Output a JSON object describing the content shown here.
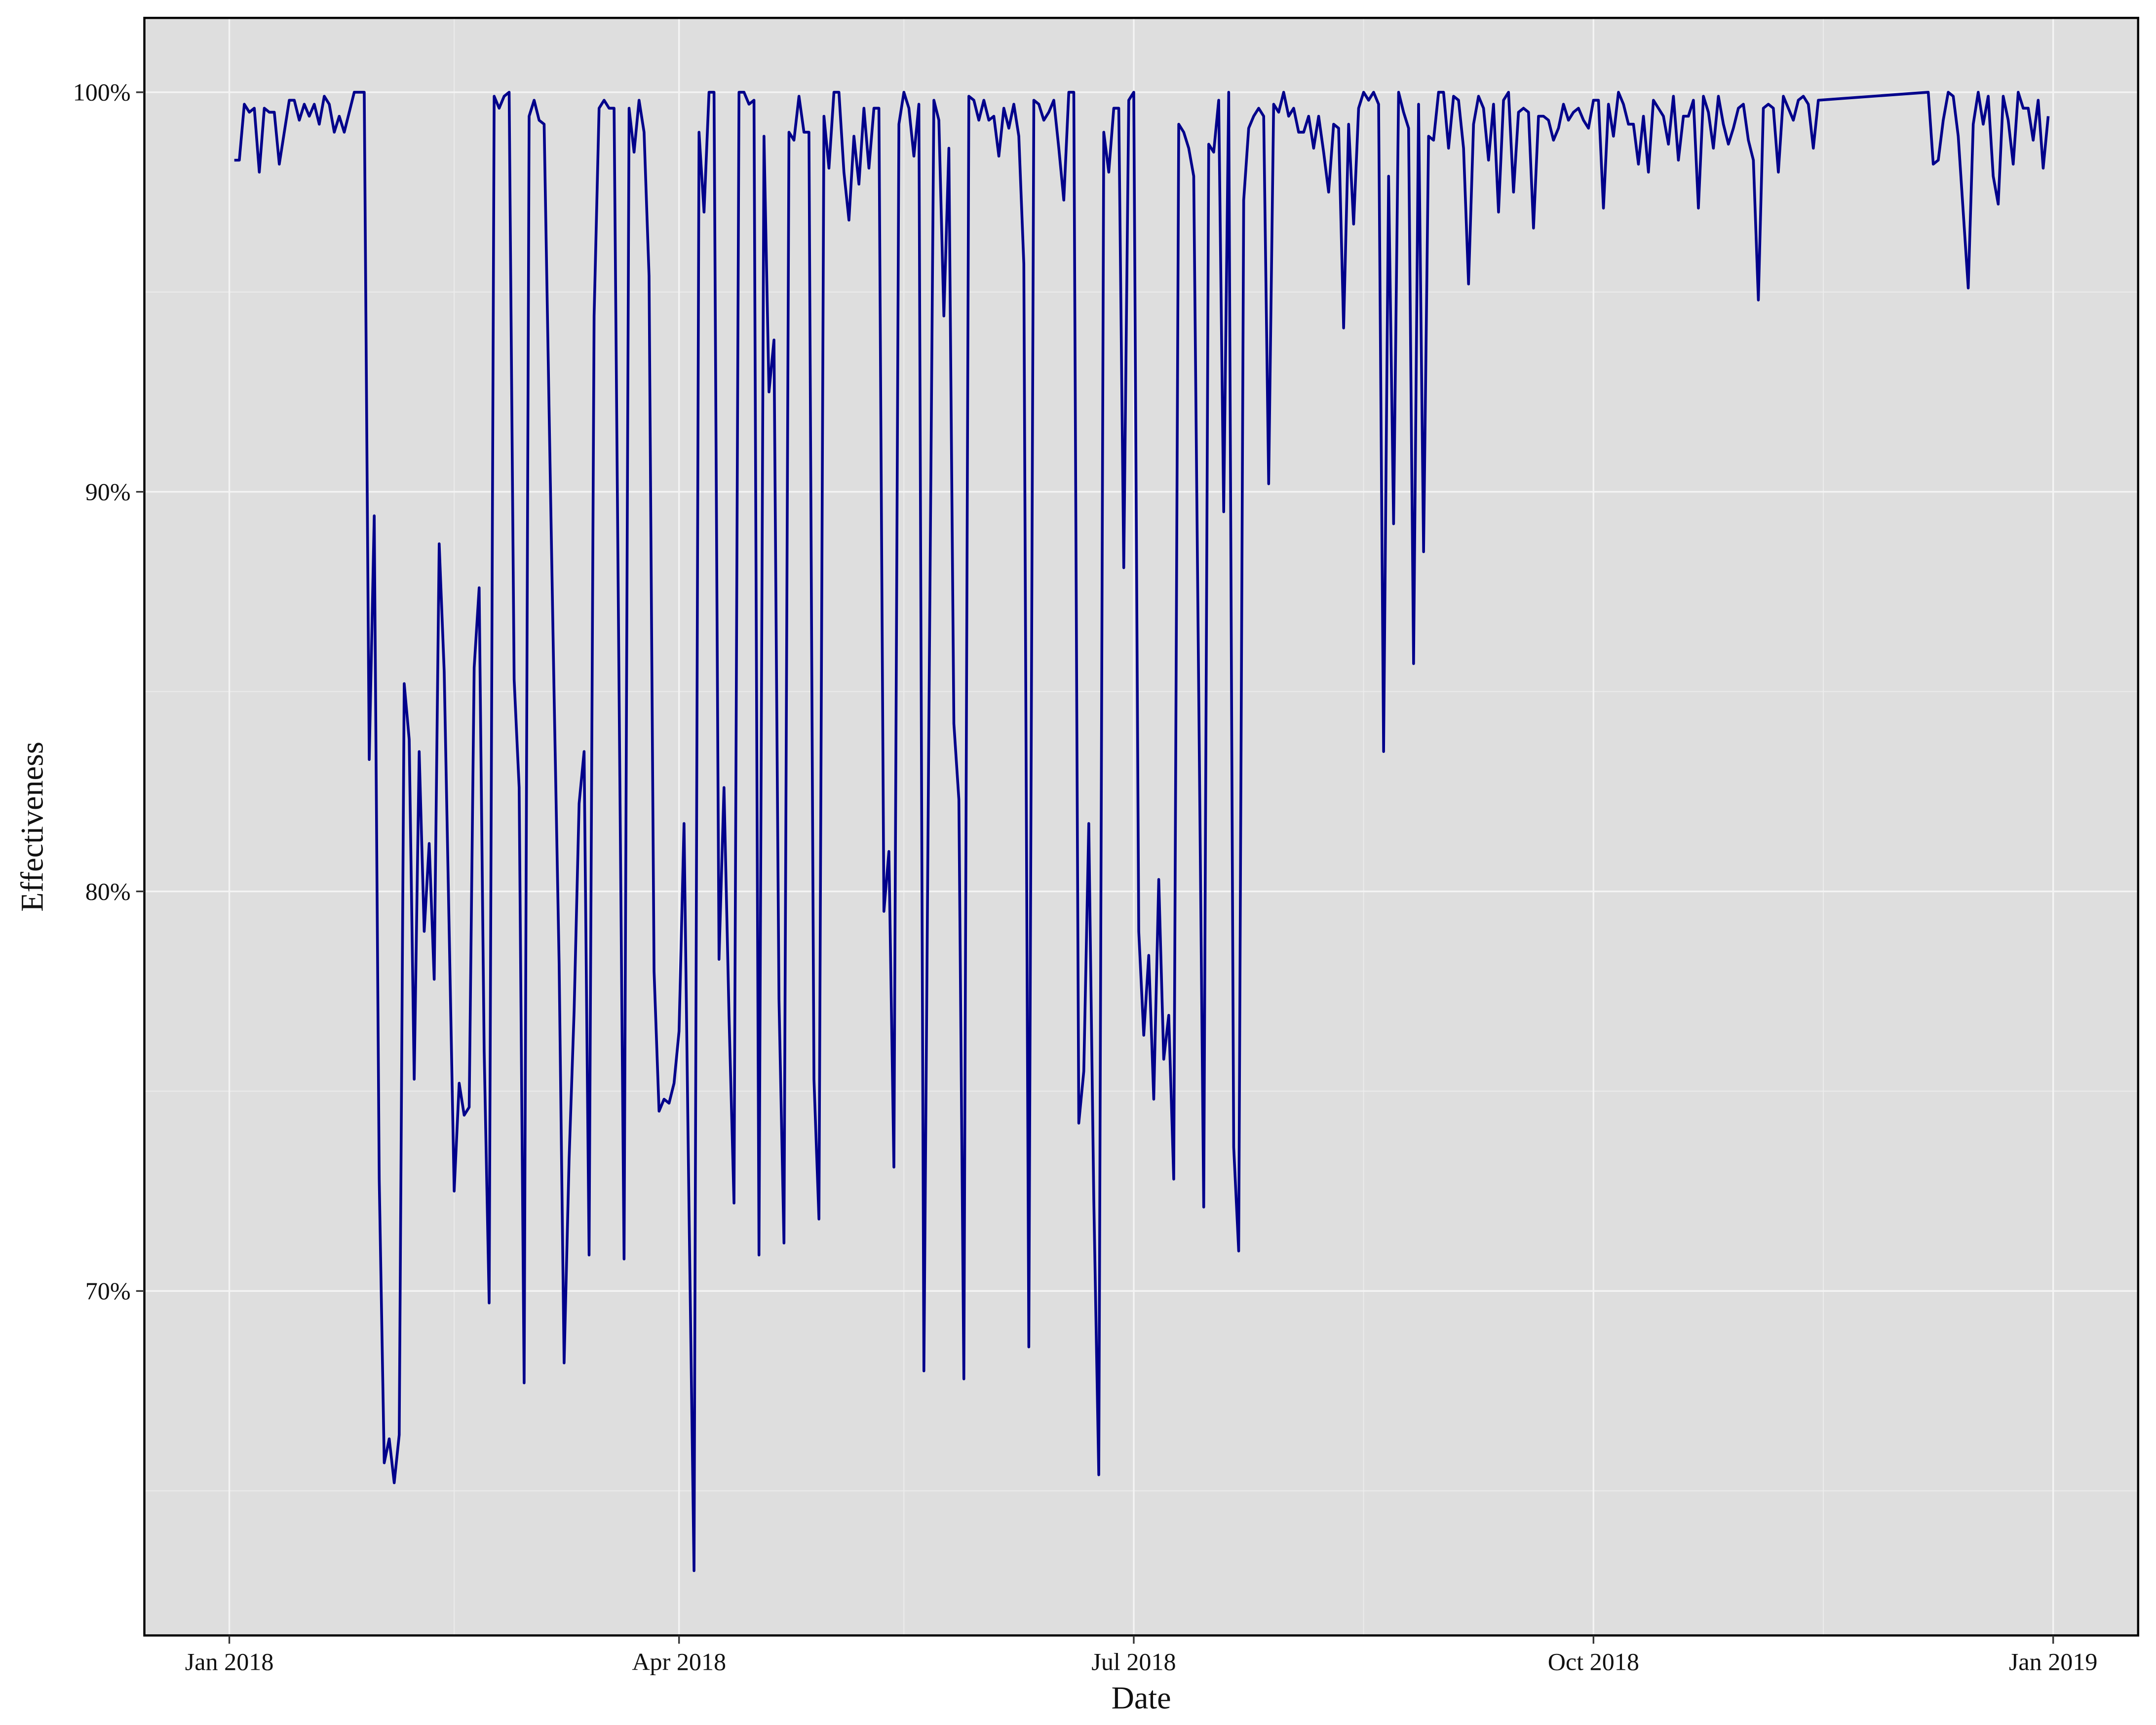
{
  "chart_data": {
    "type": "line",
    "xlabel": "Date",
    "ylabel": "Effectiveness",
    "color": "#00008b",
    "grid": true,
    "xlim": [
      "2017-12-15",
      "2019-01-18"
    ],
    "ylim": [
      61.38,
      101.86
    ],
    "xticks": [
      {
        "value": "2018-01-01",
        "label": "Jan 2018"
      },
      {
        "value": "2018-04-01",
        "label": "Apr 2018"
      },
      {
        "value": "2018-07-01",
        "label": "Jul 2018"
      },
      {
        "value": "2018-10-01",
        "label": "Oct 2018"
      },
      {
        "value": "2019-01-01",
        "label": "Jan 2019"
      }
    ],
    "x_minor_grid": [
      "2018-02-15",
      "2018-05-16",
      "2018-08-16",
      "2018-11-16"
    ],
    "yticks": [
      {
        "value": 70,
        "label": "70%"
      },
      {
        "value": 80,
        "label": "80%"
      },
      {
        "value": 90,
        "label": "90%"
      },
      {
        "value": 100,
        "label": "100%"
      }
    ],
    "y_minor_grid": [
      65,
      75,
      85,
      95
    ],
    "x": [
      "2018-01-02",
      "2018-01-03",
      "2018-01-04",
      "2018-01-05",
      "2018-01-06",
      "2018-01-07",
      "2018-01-08",
      "2018-01-09",
      "2018-01-10",
      "2018-01-11",
      "2018-01-12",
      "2018-01-13",
      "2018-01-14",
      "2018-01-15",
      "2018-01-16",
      "2018-01-17",
      "2018-01-18",
      "2018-01-19",
      "2018-01-20",
      "2018-01-21",
      "2018-01-22",
      "2018-01-23",
      "2018-01-24",
      "2018-01-25",
      "2018-01-26",
      "2018-01-27",
      "2018-01-28",
      "2018-01-29",
      "2018-01-30",
      "2018-01-31",
      "2018-02-01",
      "2018-02-02",
      "2018-02-03",
      "2018-02-04",
      "2018-02-05",
      "2018-02-06",
      "2018-02-07",
      "2018-02-08",
      "2018-02-09",
      "2018-02-10",
      "2018-02-11",
      "2018-02-12",
      "2018-02-13",
      "2018-02-14",
      "2018-02-15",
      "2018-02-16",
      "2018-02-17",
      "2018-02-18",
      "2018-02-19",
      "2018-02-20",
      "2018-02-21",
      "2018-02-22",
      "2018-02-23",
      "2018-02-24",
      "2018-02-25",
      "2018-02-26",
      "2018-02-27",
      "2018-02-28",
      "2018-03-01",
      "2018-03-02",
      "2018-03-03",
      "2018-03-04",
      "2018-03-05",
      "2018-03-06",
      "2018-03-07",
      "2018-03-08",
      "2018-03-09",
      "2018-03-10",
      "2018-03-11",
      "2018-03-12",
      "2018-03-13",
      "2018-03-14",
      "2018-03-15",
      "2018-03-16",
      "2018-03-17",
      "2018-03-18",
      "2018-03-19",
      "2018-03-20",
      "2018-03-21",
      "2018-03-22",
      "2018-03-23",
      "2018-03-24",
      "2018-03-25",
      "2018-03-26",
      "2018-03-27",
      "2018-03-28",
      "2018-03-29",
      "2018-03-30",
      "2018-03-31",
      "2018-04-01",
      "2018-04-02",
      "2018-04-03",
      "2018-04-04",
      "2018-04-05",
      "2018-04-06",
      "2018-04-07",
      "2018-04-08",
      "2018-04-09",
      "2018-04-10",
      "2018-04-11",
      "2018-04-12",
      "2018-04-13",
      "2018-04-14",
      "2018-04-15",
      "2018-04-16",
      "2018-04-17",
      "2018-04-18",
      "2018-04-19",
      "2018-04-20",
      "2018-04-21",
      "2018-04-22",
      "2018-04-23",
      "2018-04-24",
      "2018-04-25",
      "2018-04-26",
      "2018-04-27",
      "2018-04-28",
      "2018-04-29",
      "2018-04-30",
      "2018-05-01",
      "2018-05-02",
      "2018-05-03",
      "2018-05-04",
      "2018-05-05",
      "2018-05-06",
      "2018-05-07",
      "2018-05-08",
      "2018-05-09",
      "2018-05-10",
      "2018-05-11",
      "2018-05-12",
      "2018-05-13",
      "2018-05-14",
      "2018-05-15",
      "2018-05-16",
      "2018-05-17",
      "2018-05-18",
      "2018-05-19",
      "2018-05-20",
      "2018-05-21",
      "2018-05-22",
      "2018-05-23",
      "2018-05-24",
      "2018-05-25",
      "2018-05-26",
      "2018-05-27",
      "2018-05-28",
      "2018-05-29",
      "2018-05-30",
      "2018-05-31",
      "2018-06-01",
      "2018-06-02",
      "2018-06-03",
      "2018-06-04",
      "2018-06-05",
      "2018-06-06",
      "2018-06-07",
      "2018-06-08",
      "2018-06-09",
      "2018-06-10",
      "2018-06-11",
      "2018-06-12",
      "2018-06-13",
      "2018-06-14",
      "2018-06-15",
      "2018-06-16",
      "2018-06-17",
      "2018-06-18",
      "2018-06-19",
      "2018-06-20",
      "2018-06-21",
      "2018-06-22",
      "2018-06-23",
      "2018-06-24",
      "2018-06-25",
      "2018-06-26",
      "2018-06-27",
      "2018-06-28",
      "2018-06-29",
      "2018-06-30",
      "2018-07-01",
      "2018-07-02",
      "2018-07-03",
      "2018-07-04",
      "2018-07-05",
      "2018-07-06",
      "2018-07-07",
      "2018-07-08",
      "2018-07-09",
      "2018-07-10",
      "2018-07-11",
      "2018-07-12",
      "2018-07-13",
      "2018-07-14",
      "2018-07-15",
      "2018-07-16",
      "2018-07-17",
      "2018-07-18",
      "2018-07-19",
      "2018-07-20",
      "2018-07-21",
      "2018-07-22",
      "2018-07-23",
      "2018-07-24",
      "2018-07-25",
      "2018-07-26",
      "2018-07-27",
      "2018-07-28",
      "2018-07-29",
      "2018-07-30",
      "2018-07-31",
      "2018-08-01",
      "2018-08-02",
      "2018-08-03",
      "2018-08-04",
      "2018-08-05",
      "2018-08-06",
      "2018-08-07",
      "2018-08-08",
      "2018-08-09",
      "2018-08-10",
      "2018-08-11",
      "2018-08-12",
      "2018-08-13",
      "2018-08-14",
      "2018-08-15",
      "2018-08-16",
      "2018-08-17",
      "2018-08-18",
      "2018-08-19",
      "2018-08-20",
      "2018-08-21",
      "2018-08-22",
      "2018-08-23",
      "2018-08-24",
      "2018-08-25",
      "2018-08-26",
      "2018-08-27",
      "2018-08-28",
      "2018-08-29",
      "2018-08-30",
      "2018-08-31",
      "2018-09-01",
      "2018-09-02",
      "2018-09-03",
      "2018-09-04",
      "2018-09-05",
      "2018-09-06",
      "2018-09-07",
      "2018-09-08",
      "2018-09-09",
      "2018-09-10",
      "2018-09-11",
      "2018-09-12",
      "2018-09-13",
      "2018-09-14",
      "2018-09-15",
      "2018-09-16",
      "2018-09-17",
      "2018-09-18",
      "2018-09-19",
      "2018-09-20",
      "2018-09-21",
      "2018-09-22",
      "2018-09-23",
      "2018-09-24",
      "2018-09-25",
      "2018-09-26",
      "2018-09-27",
      "2018-09-28",
      "2018-09-29",
      "2018-09-30",
      "2018-10-01",
      "2018-10-02",
      "2018-10-03",
      "2018-10-04",
      "2018-10-05",
      "2018-10-06",
      "2018-10-07",
      "2018-10-08",
      "2018-10-09",
      "2018-10-10",
      "2018-10-11",
      "2018-10-12",
      "2018-10-13",
      "2018-10-14",
      "2018-10-15",
      "2018-10-16",
      "2018-10-17",
      "2018-10-18",
      "2018-10-19",
      "2018-10-20",
      "2018-10-21",
      "2018-10-22",
      "2018-10-23",
      "2018-10-24",
      "2018-10-25",
      "2018-10-26",
      "2018-10-27",
      "2018-10-28",
      "2018-10-29",
      "2018-10-30",
      "2018-10-31",
      "2018-11-01",
      "2018-11-02",
      "2018-11-03",
      "2018-11-04",
      "2018-11-05",
      "2018-11-06",
      "2018-11-07",
      "2018-11-08",
      "2018-11-09",
      "2018-11-10",
      "2018-11-11",
      "2018-11-12",
      "2018-11-13",
      "2018-11-14",
      "2018-11-15",
      "2018-12-07",
      "2018-12-08",
      "2018-12-09",
      "2018-12-10",
      "2018-12-11",
      "2018-12-12",
      "2018-12-13",
      "2018-12-14",
      "2018-12-15",
      "2018-12-16",
      "2018-12-17",
      "2018-12-18",
      "2018-12-19",
      "2018-12-20",
      "2018-12-21",
      "2018-12-22",
      "2018-12-23",
      "2018-12-24",
      "2018-12-25",
      "2018-12-26",
      "2018-12-27",
      "2018-12-28",
      "2018-12-29",
      "2018-12-30",
      "2018-12-31"
    ],
    "values": [
      98.3,
      98.3,
      99.7,
      99.5,
      99.6,
      98.0,
      99.6,
      99.5,
      99.5,
      98.2,
      99.0,
      99.8,
      99.8,
      99.3,
      99.7,
      99.4,
      99.7,
      99.2,
      99.9,
      99.7,
      99.0,
      99.4,
      99.0,
      99.5,
      100,
      100,
      100,
      83.3,
      89.4,
      72.8,
      65.7,
      66.3,
      65.2,
      66.4,
      85.2,
      83.8,
      75.3,
      83.5,
      79.0,
      81.2,
      77.8,
      88.7,
      85.5,
      79.0,
      72.5,
      75.2,
      74.4,
      74.6,
      85.6,
      87.6,
      76.0,
      69.7,
      99.9,
      99.6,
      99.9,
      100,
      85.3,
      82.6,
      67.7,
      99.4,
      99.8,
      99.3,
      99.2,
      92.0,
      84.9,
      78.2,
      68.2,
      73.3,
      77.0,
      82.2,
      83.5,
      70.9,
      94.4,
      99.6,
      99.8,
      99.6,
      99.6,
      85.0,
      70.8,
      99.6,
      98.5,
      99.8,
      99.0,
      95.4,
      78.0,
      74.5,
      74.8,
      74.7,
      75.2,
      76.5,
      81.7,
      72.0,
      63.0,
      99.0,
      97.0,
      100,
      100,
      78.3,
      82.6,
      76.9,
      72.2,
      100,
      100,
      99.7,
      99.8,
      70.9,
      98.9,
      92.5,
      93.8,
      77.3,
      71.2,
      99.0,
      98.8,
      99.9,
      99.0,
      99.0,
      75.3,
      71.8,
      99.4,
      98.1,
      100,
      100,
      98.0,
      96.8,
      98.9,
      97.7,
      99.6,
      98.1,
      99.6,
      99.6,
      79.5,
      81.0,
      73.1,
      99.2,
      100,
      99.6,
      98.4,
      99.7,
      68.0,
      84.2,
      99.8,
      99.3,
      94.4,
      98.6,
      84.2,
      82.3,
      67.8,
      99.9,
      99.8,
      99.3,
      99.8,
      99.3,
      99.4,
      98.4,
      99.6,
      99.1,
      99.7,
      98.9,
      95.7,
      68.6,
      99.8,
      99.7,
      99.3,
      99.5,
      99.8,
      98.6,
      97.3,
      100,
      100,
      74.2,
      75.5,
      81.7,
      72.3,
      65.4,
      99.0,
      98.0,
      99.6,
      99.6,
      88.1,
      99.8,
      100,
      79.0,
      76.4,
      78.4,
      74.8,
      80.3,
      75.8,
      76.9,
      72.8,
      99.2,
      99.0,
      98.6,
      97.9,
      85.0,
      72.1,
      98.7,
      98.5,
      99.8,
      89.5,
      100,
      73.6,
      71.0,
      97.3,
      99.1,
      99.4,
      99.6,
      99.4,
      90.2,
      99.7,
      99.5,
      100,
      99.4,
      99.6,
      99.0,
      99.0,
      99.4,
      98.6,
      99.4,
      98.5,
      97.5,
      99.2,
      99.1,
      94.1,
      99.2,
      96.7,
      99.6,
      100,
      99.8,
      100,
      99.7,
      83.5,
      97.9,
      89.2,
      100,
      99.5,
      99.1,
      85.7,
      99.7,
      88.5,
      98.9,
      98.8,
      100,
      100,
      98.6,
      99.9,
      99.8,
      98.6,
      95.2,
      99.2,
      99.9,
      99.6,
      98.3,
      99.7,
      97.0,
      99.8,
      100,
      97.5,
      99.5,
      99.6,
      99.5,
      96.6,
      99.4,
      99.4,
      99.3,
      98.8,
      99.1,
      99.7,
      99.3,
      99.5,
      99.6,
      99.3,
      99.1,
      99.8,
      99.8,
      97.1,
      99.7,
      98.9,
      100,
      99.7,
      99.2,
      99.2,
      98.2,
      99.4,
      98.0,
      99.8,
      99.6,
      99.4,
      98.7,
      99.9,
      98.3,
      99.4,
      99.4,
      99.8,
      97.1,
      99.9,
      99.5,
      98.6,
      99.9,
      99.2,
      98.7,
      99.1,
      99.6,
      99.7,
      98.8,
      98.3,
      94.8,
      99.6,
      99.7,
      99.6,
      98.0,
      99.9,
      99.6,
      99.3,
      99.8,
      99.9,
      99.7,
      98.6,
      99.8,
      100,
      98.2,
      98.3,
      99.3,
      100,
      99.9,
      98.9,
      97.0,
      95.1,
      99.2,
      100,
      99.2,
      99.9,
      97.9,
      97.2,
      99.9,
      99.3,
      98.2,
      100,
      99.6,
      99.6,
      98.8,
      99.8,
      98.1,
      99.4
    ]
  }
}
